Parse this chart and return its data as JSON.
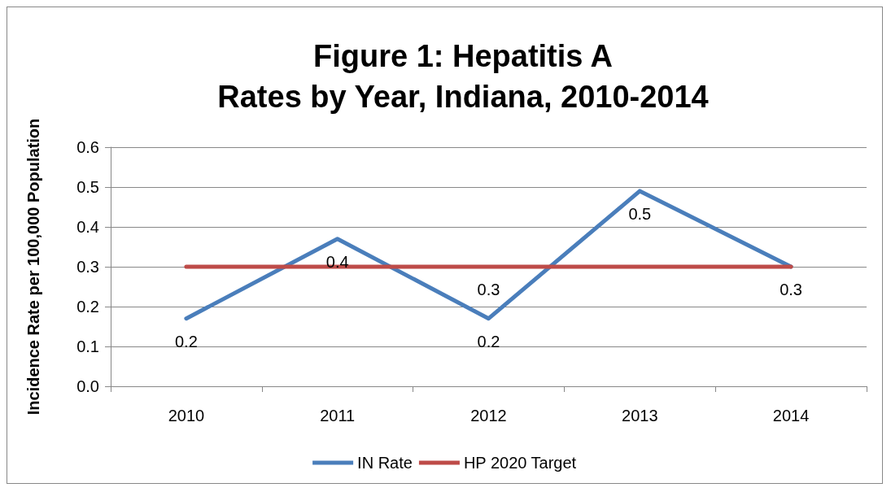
{
  "chart_data": {
    "type": "line",
    "title": "Figure 1: Hepatitis A\nRates by Year, Indiana, 2010-2014",
    "ylabel": "Incidence Rate per 100,000 Population",
    "categories": [
      "2010",
      "2011",
      "2012",
      "2013",
      "2014"
    ],
    "series": [
      {
        "name": "IN Rate",
        "color": "#4a7ebb",
        "values": [
          0.17,
          0.37,
          0.17,
          0.49,
          0.3
        ],
        "value_labels": [
          "0.2",
          "0.4",
          "0.2",
          "0.5",
          "0.3"
        ]
      },
      {
        "name": "HP 2020 Target",
        "color": "#be4b48",
        "values": [
          0.3,
          0.3,
          0.3,
          0.3,
          0.3
        ],
        "value_labels": [
          null,
          null,
          "0.3",
          null,
          null
        ]
      }
    ],
    "ylim": [
      0,
      0.6
    ],
    "yticks": [
      {
        "value": 0,
        "label": "0.0"
      },
      {
        "value": 0.1,
        "label": "0.1"
      },
      {
        "value": 0.2,
        "label": "0.2"
      },
      {
        "value": 0.3,
        "label": "0.3"
      },
      {
        "value": 0.4,
        "label": "0.4"
      },
      {
        "value": 0.5,
        "label": "0.5"
      },
      {
        "value": 0.6,
        "label": "0.6"
      }
    ],
    "grid": "y",
    "legend": "bottom",
    "marker": "none",
    "line_style": "solid"
  }
}
